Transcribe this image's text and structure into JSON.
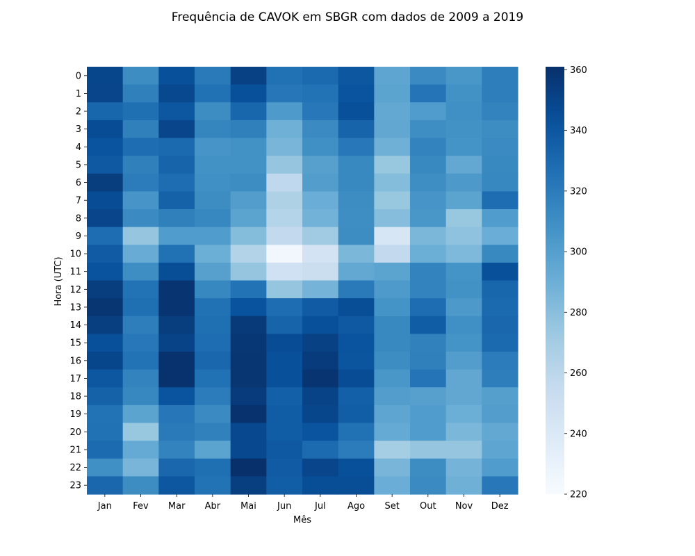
{
  "chart_data": {
    "type": "heatmap",
    "title": "Frequência de CAVOK em SBGR com dados de 2009 a 2019",
    "xlabel": "Mês",
    "ylabel": "Hora (UTC)",
    "x_categories": [
      "Jan",
      "Fev",
      "Mar",
      "Abr",
      "Mai",
      "Jun",
      "Jul",
      "Ago",
      "Set",
      "Out",
      "Nov",
      "Dez"
    ],
    "y_categories": [
      "0",
      "1",
      "2",
      "3",
      "4",
      "5",
      "6",
      "7",
      "8",
      "9",
      "10",
      "11",
      "12",
      "13",
      "14",
      "15",
      "16",
      "17",
      "18",
      "19",
      "20",
      "21",
      "22",
      "23"
    ],
    "values": [
      [
        349,
        311,
        344,
        321,
        352,
        326,
        330,
        340,
        296,
        312,
        305,
        319
      ],
      [
        350,
        318,
        348,
        326,
        344,
        323,
        325,
        342,
        297,
        324,
        308,
        319
      ],
      [
        332,
        327,
        340,
        311,
        332,
        303,
        322,
        344,
        294,
        302,
        309,
        316
      ],
      [
        346,
        318,
        350,
        315,
        318,
        289,
        312,
        333,
        295,
        310,
        308,
        311
      ],
      [
        342,
        328,
        330,
        306,
        308,
        286,
        309,
        322,
        289,
        316,
        307,
        312
      ],
      [
        339,
        318,
        333,
        308,
        308,
        276,
        299,
        313,
        275,
        313,
        294,
        313
      ],
      [
        354,
        320,
        328,
        309,
        311,
        258,
        301,
        313,
        282,
        310,
        304,
        314
      ],
      [
        346,
        306,
        334,
        311,
        301,
        266,
        291,
        311,
        275,
        306,
        297,
        328
      ],
      [
        350,
        312,
        318,
        314,
        297,
        263,
        288,
        310,
        281,
        305,
        275,
        302
      ],
      [
        328,
        276,
        302,
        302,
        282,
        257,
        272,
        311,
        243,
        285,
        278,
        291
      ],
      [
        338,
        292,
        326,
        290,
        264,
        224,
        246,
        285,
        257,
        290,
        284,
        313
      ],
      [
        343,
        310,
        345,
        299,
        276,
        249,
        252,
        294,
        297,
        316,
        307,
        344
      ],
      [
        354,
        325,
        359,
        314,
        325,
        276,
        287,
        321,
        303,
        316,
        308,
        332
      ],
      [
        358,
        327,
        359,
        326,
        343,
        328,
        338,
        345,
        307,
        328,
        304,
        330
      ],
      [
        353,
        319,
        354,
        327,
        356,
        333,
        344,
        339,
        313,
        337,
        309,
        331
      ],
      [
        344,
        322,
        351,
        328,
        357,
        346,
        352,
        342,
        313,
        317,
        307,
        330
      ],
      [
        349,
        325,
        360,
        331,
        358,
        344,
        355,
        341,
        311,
        318,
        301,
        320
      ],
      [
        340,
        316,
        360,
        326,
        358,
        344,
        359,
        346,
        305,
        324,
        295,
        319
      ],
      [
        334,
        314,
        342,
        320,
        355,
        335,
        351,
        335,
        301,
        299,
        295,
        300
      ],
      [
        325,
        297,
        323,
        312,
        360,
        337,
        349,
        336,
        296,
        302,
        290,
        301
      ],
      [
        326,
        275,
        321,
        317,
        348,
        337,
        342,
        326,
        293,
        302,
        285,
        294
      ],
      [
        329,
        293,
        316,
        297,
        348,
        339,
        329,
        320,
        270,
        276,
        276,
        296
      ],
      [
        309,
        286,
        331,
        327,
        362,
        338,
        350,
        344,
        286,
        311,
        287,
        302
      ],
      [
        331,
        311,
        340,
        325,
        353,
        336,
        345,
        345,
        291,
        312,
        289,
        322
      ]
    ],
    "colorbar": {
      "min": 220,
      "max": 361,
      "ticks": [
        220,
        240,
        260,
        280,
        300,
        320,
        340,
        360
      ],
      "colormap": "Blues"
    },
    "grid": false
  }
}
